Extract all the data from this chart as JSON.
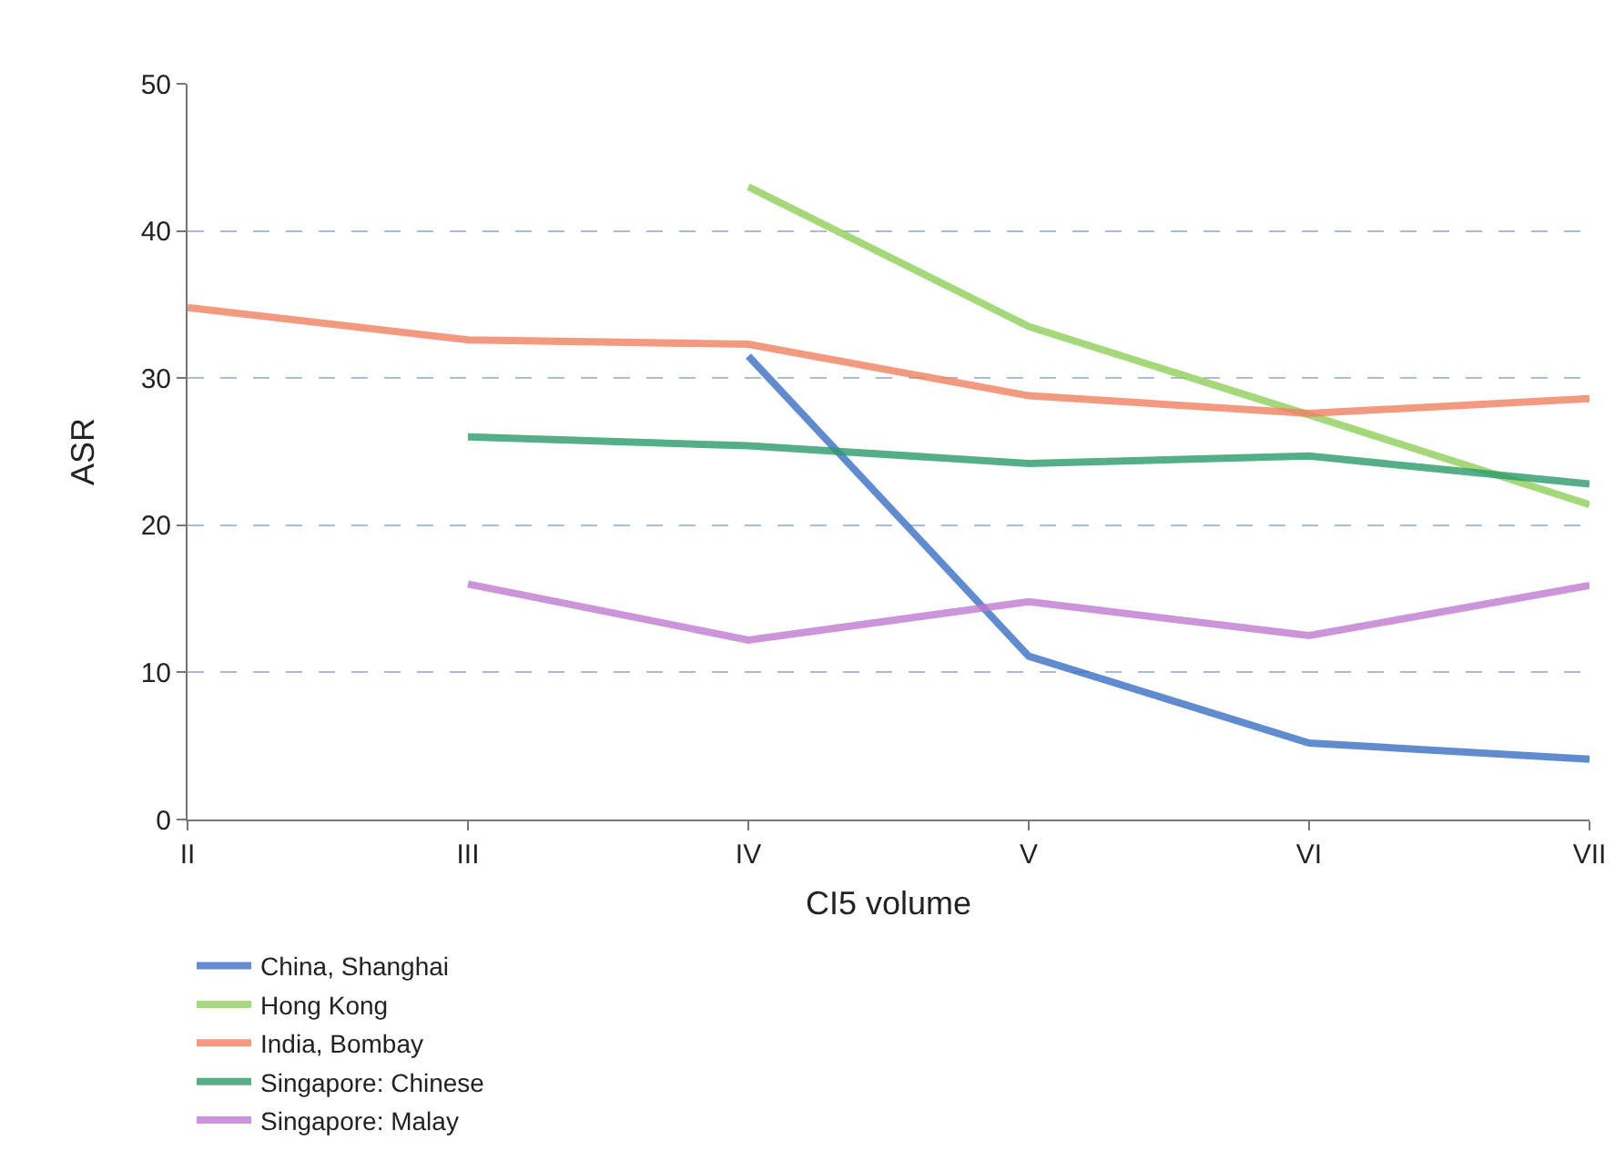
{
  "chart_data": {
    "type": "line",
    "xlabel": "CI5 volume",
    "ylabel": "ASR",
    "categories": [
      "II",
      "III",
      "IV",
      "V",
      "VI",
      "VII"
    ],
    "series": [
      {
        "name": "China, Shanghai",
        "color": "#3a6fc4",
        "values": [
          null,
          null,
          31.5,
          11.1,
          5.2,
          4.1
        ]
      },
      {
        "name": "Hong Kong",
        "color": "#8fcf5a",
        "values": [
          null,
          null,
          43,
          33.5,
          27.5,
          21.4
        ]
      },
      {
        "name": "India, Bombay",
        "color": "#f08060",
        "values": [
          34.8,
          32.6,
          32.3,
          28.8,
          27.6,
          28.6
        ]
      },
      {
        "name": "Singapore: Chinese",
        "color": "#2a9a6a",
        "values": [
          null,
          26,
          25.4,
          24.2,
          24.7,
          22.8
        ]
      },
      {
        "name": "Singapore: Malay",
        "color": "#c07ad0",
        "values": [
          null,
          16,
          12.2,
          14.8,
          12.5,
          15.9
        ]
      }
    ],
    "ylim": [
      0,
      50
    ],
    "yticks": [
      0,
      10,
      20,
      30,
      40,
      50
    ],
    "grid": "y",
    "legend": "bottom left",
    "marker": "none",
    "line_style": "solid"
  }
}
